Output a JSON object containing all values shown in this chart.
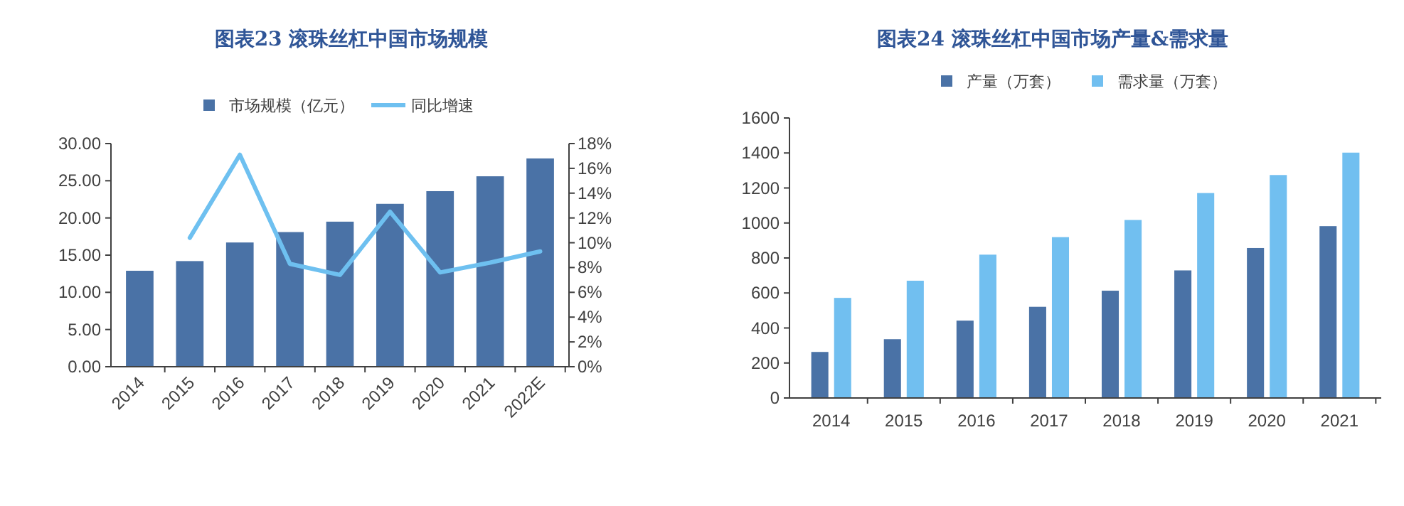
{
  "chart_data": [
    {
      "type": "bar",
      "title": "图表23 滚珠丝杠中国市场规模",
      "categories": [
        "2014",
        "2015",
        "2016",
        "2017",
        "2018",
        "2019",
        "2020",
        "2021",
        "2022E"
      ],
      "series": [
        {
          "name": "市场规模（亿元）",
          "color": "#4a72a6",
          "values": [
            12.9,
            14.2,
            16.7,
            18.1,
            19.5,
            21.9,
            23.6,
            25.6,
            28.0
          ]
        },
        {
          "name": "同比增速",
          "type": "line",
          "axis": "y2",
          "color": "#6ec0f0",
          "values": [
            null,
            10.4,
            17.1,
            8.3,
            7.4,
            12.5,
            7.6,
            8.4,
            9.3
          ]
        }
      ],
      "ylim": [
        0,
        30
      ],
      "yticks": [
        {
          "value": 0,
          "label": "0.00"
        },
        {
          "value": 5,
          "label": "5.00"
        },
        {
          "value": 10,
          "label": "10.00"
        },
        {
          "value": 15,
          "label": "15.00"
        },
        {
          "value": 20,
          "label": "20.00"
        },
        {
          "value": 25,
          "label": "25.00"
        },
        {
          "value": 30,
          "label": "30.00"
        }
      ],
      "y2lim": [
        0,
        18
      ],
      "y2ticks": [
        {
          "value": 0,
          "label": "0%"
        },
        {
          "value": 2,
          "label": "2%"
        },
        {
          "value": 4,
          "label": "4%"
        },
        {
          "value": 6,
          "label": "6%"
        },
        {
          "value": 8,
          "label": "8%"
        },
        {
          "value": 10,
          "label": "10%"
        },
        {
          "value": 12,
          "label": "12%"
        },
        {
          "value": 14,
          "label": "14%"
        },
        {
          "value": 16,
          "label": "16%"
        },
        {
          "value": 18,
          "label": "18%"
        }
      ],
      "legend": "top",
      "grid": false
    },
    {
      "type": "bar",
      "title": "图表24 滚珠丝杠中国市场产量&需求量",
      "categories": [
        "2014",
        "2015",
        "2016",
        "2017",
        "2018",
        "2019",
        "2020",
        "2021"
      ],
      "series": [
        {
          "name": "产量（万套）",
          "color": "#4a72a6",
          "values": [
            263,
            336,
            442,
            521,
            613,
            729,
            857,
            982
          ]
        },
        {
          "name": "需求量（万套）",
          "color": "#71bff0",
          "values": [
            572,
            670,
            819,
            919,
            1017,
            1171,
            1274,
            1402
          ]
        }
      ],
      "ylim": [
        0,
        1600
      ],
      "yticks": [
        0,
        200,
        400,
        600,
        800,
        1000,
        1200,
        1400,
        1600
      ],
      "legend": "top",
      "grid": false
    }
  ]
}
